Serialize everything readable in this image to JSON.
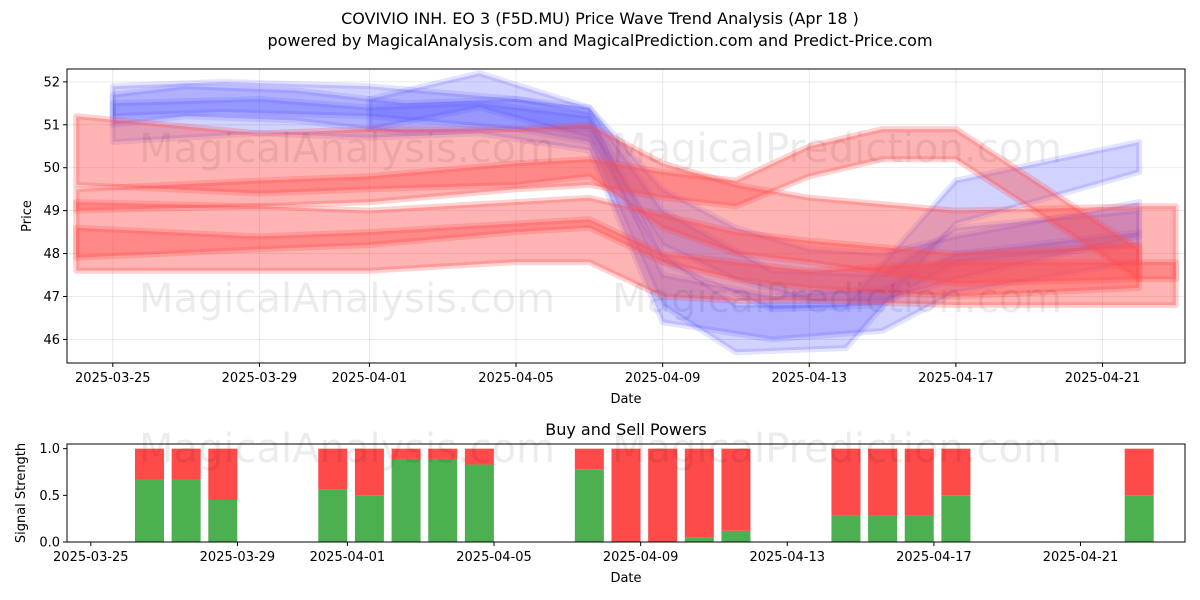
{
  "title": "COVIVIO INH.  EO 3 (F5D.MU) Price Wave Trend Analysis (Apr 18 )",
  "subtitle": "powered by MagicalAnalysis.com and MagicalPrediction.com and Predict-Price.com",
  "watermarks": [
    "MagicalAnalysis.com",
    "MagicalPrediction.com"
  ],
  "colors": {
    "blue_band": "#4d4dff",
    "red_band": "#ff4d4d",
    "buy": "#4caf50",
    "sell": "#ff4a4a"
  },
  "chart_data": [
    {
      "type": "area",
      "name": "price-wave",
      "xlabel": "Date",
      "ylabel": "Price",
      "xlim": [
        "2025-03-23T18:00",
        "2025-04-23T06:00"
      ],
      "ylim": [
        45.45,
        52.3
      ],
      "grid": true,
      "x_ticks": [
        "2025-03-25",
        "2025-03-29",
        "2025-04-01",
        "2025-04-05",
        "2025-04-09",
        "2025-04-13",
        "2025-04-17",
        "2025-04-21"
      ],
      "y_ticks": [
        46,
        47,
        48,
        49,
        50,
        51,
        52
      ],
      "blue_bands": [
        {
          "x": [
            "2025-03-25",
            "2025-03-28",
            "2025-04-01",
            "2025-04-05",
            "2025-04-07",
            "2025-04-09",
            "2025-04-11",
            "2025-04-13",
            "2025-04-15",
            "2025-04-17",
            "2025-04-22"
          ],
          "upper": [
            51.9,
            52.0,
            51.9,
            51.6,
            51.4,
            49.5,
            48.6,
            48.1,
            48.0,
            48.4,
            49.2
          ],
          "lower": [
            51.2,
            51.3,
            51.2,
            50.9,
            50.9,
            48.2,
            47.4,
            46.9,
            46.9,
            47.4,
            48.4
          ]
        },
        {
          "x": [
            "2025-03-25",
            "2025-03-27",
            "2025-03-30",
            "2025-04-02",
            "2025-04-05",
            "2025-04-07",
            "2025-04-09",
            "2025-04-11",
            "2025-04-14",
            "2025-04-17",
            "2025-04-22"
          ],
          "upper": [
            51.7,
            51.9,
            51.8,
            51.5,
            51.6,
            51.3,
            48.0,
            46.8,
            46.8,
            49.7,
            50.6
          ],
          "lower": [
            51.0,
            51.2,
            51.1,
            50.8,
            50.9,
            50.6,
            46.8,
            45.7,
            45.8,
            48.7,
            49.9
          ]
        },
        {
          "x": [
            "2025-03-25",
            "2025-03-29",
            "2025-04-01",
            "2025-04-04",
            "2025-04-07",
            "2025-04-09",
            "2025-04-12",
            "2025-04-15",
            "2025-04-17",
            "2025-04-22"
          ],
          "upper": [
            51.5,
            51.6,
            51.4,
            51.5,
            51.2,
            47.5,
            47.0,
            47.2,
            48.0,
            48.5
          ],
          "lower": [
            50.6,
            50.8,
            50.7,
            50.8,
            50.4,
            46.4,
            46.0,
            46.2,
            47.1,
            47.8
          ]
        },
        {
          "x": [
            "2025-04-01",
            "2025-04-04",
            "2025-04-07",
            "2025-04-09",
            "2025-04-12",
            "2025-04-15",
            "2025-04-17",
            "2025-04-22"
          ],
          "upper": [
            51.6,
            52.2,
            51.4,
            49.0,
            47.6,
            47.5,
            48.6,
            49.0
          ],
          "lower": [
            50.9,
            51.4,
            50.7,
            47.8,
            46.7,
            46.8,
            47.8,
            48.2
          ]
        }
      ],
      "red_bands": [
        {
          "x": [
            "2025-03-24",
            "2025-03-29",
            "2025-04-01",
            "2025-04-05",
            "2025-04-07",
            "2025-04-09",
            "2025-04-11",
            "2025-04-13",
            "2025-04-17",
            "2025-04-22",
            "2025-04-23"
          ],
          "upper": [
            51.2,
            50.8,
            50.9,
            50.9,
            51.0,
            50.1,
            49.6,
            49.3,
            49.0,
            49.1,
            49.1
          ],
          "lower": [
            49.6,
            49.4,
            49.5,
            49.6,
            49.8,
            48.6,
            48.0,
            47.8,
            47.3,
            47.4,
            47.4
          ]
        },
        {
          "x": [
            "2025-03-24",
            "2025-03-29",
            "2025-04-01",
            "2025-04-05",
            "2025-04-07",
            "2025-04-09",
            "2025-04-11",
            "2025-04-13",
            "2025-04-15",
            "2025-04-17",
            "2025-04-22"
          ],
          "upper": [
            49.5,
            49.7,
            49.8,
            50.1,
            50.2,
            49.9,
            49.7,
            50.5,
            50.9,
            50.9,
            48.1
          ],
          "lower": [
            49.0,
            49.1,
            49.2,
            49.5,
            49.6,
            49.3,
            49.1,
            49.8,
            50.2,
            50.2,
            47.4
          ]
        },
        {
          "x": [
            "2025-03-24",
            "2025-03-29",
            "2025-04-01",
            "2025-04-05",
            "2025-04-07",
            "2025-04-09",
            "2025-04-11",
            "2025-04-13",
            "2025-04-17",
            "2025-04-22"
          ],
          "upper": [
            49.2,
            49.1,
            49.0,
            49.2,
            49.3,
            48.9,
            48.5,
            48.3,
            48.0,
            48.2
          ],
          "lower": [
            47.9,
            48.1,
            48.2,
            48.5,
            48.6,
            47.8,
            47.4,
            47.2,
            47.0,
            47.2
          ]
        },
        {
          "x": [
            "2025-03-24",
            "2025-03-29",
            "2025-04-01",
            "2025-04-05",
            "2025-04-07",
            "2025-04-09",
            "2025-04-11",
            "2025-04-13",
            "2025-04-17",
            "2025-04-22",
            "2025-04-23"
          ],
          "upper": [
            48.6,
            48.4,
            48.5,
            48.7,
            48.8,
            48.0,
            47.8,
            47.6,
            47.8,
            47.8,
            47.8
          ],
          "lower": [
            47.6,
            47.6,
            47.6,
            47.8,
            47.8,
            47.0,
            46.9,
            46.9,
            46.8,
            46.8,
            46.8
          ]
        }
      ]
    },
    {
      "type": "bar",
      "name": "buy-sell-powers",
      "title": "Buy and Sell Powers",
      "xlabel": "Date",
      "ylabel": "Signal Strength",
      "xlim": [
        "2025-03-23T18:00",
        "2025-04-23T06:00"
      ],
      "ylim": [
        0,
        1.05
      ],
      "x_ticks": [
        "2025-03-25",
        "2025-03-29",
        "2025-04-01",
        "2025-04-05",
        "2025-04-09",
        "2025-04-13",
        "2025-04-17",
        "2025-04-21"
      ],
      "y_ticks": [
        "0.0",
        "0.5",
        "1.0"
      ],
      "series": [
        {
          "name": "Buy",
          "x": [
            "2025-03-26",
            "2025-03-27",
            "2025-03-28",
            "2025-03-31",
            "2025-04-01",
            "2025-04-02",
            "2025-04-03",
            "2025-04-04",
            "2025-04-07",
            "2025-04-08",
            "2025-04-09",
            "2025-04-10",
            "2025-04-11",
            "2025-04-14",
            "2025-04-15",
            "2025-04-16",
            "2025-04-17",
            "2025-04-22"
          ],
          "values": [
            0.67,
            0.67,
            0.45,
            0.56,
            0.5,
            0.89,
            0.89,
            0.83,
            0.78,
            0.0,
            0.0,
            0.05,
            0.12,
            0.28,
            0.28,
            0.28,
            0.5,
            0.5
          ]
        },
        {
          "name": "Sell",
          "x": [
            "2025-03-26",
            "2025-03-27",
            "2025-03-28",
            "2025-03-31",
            "2025-04-01",
            "2025-04-02",
            "2025-04-03",
            "2025-04-04",
            "2025-04-07",
            "2025-04-08",
            "2025-04-09",
            "2025-04-10",
            "2025-04-11",
            "2025-04-14",
            "2025-04-15",
            "2025-04-16",
            "2025-04-17",
            "2025-04-22"
          ],
          "values": [
            0.33,
            0.33,
            0.55,
            0.44,
            0.5,
            0.11,
            0.11,
            0.17,
            0.22,
            1.0,
            1.0,
            0.95,
            0.88,
            0.72,
            0.72,
            0.72,
            0.5,
            0.5
          ]
        }
      ]
    }
  ]
}
